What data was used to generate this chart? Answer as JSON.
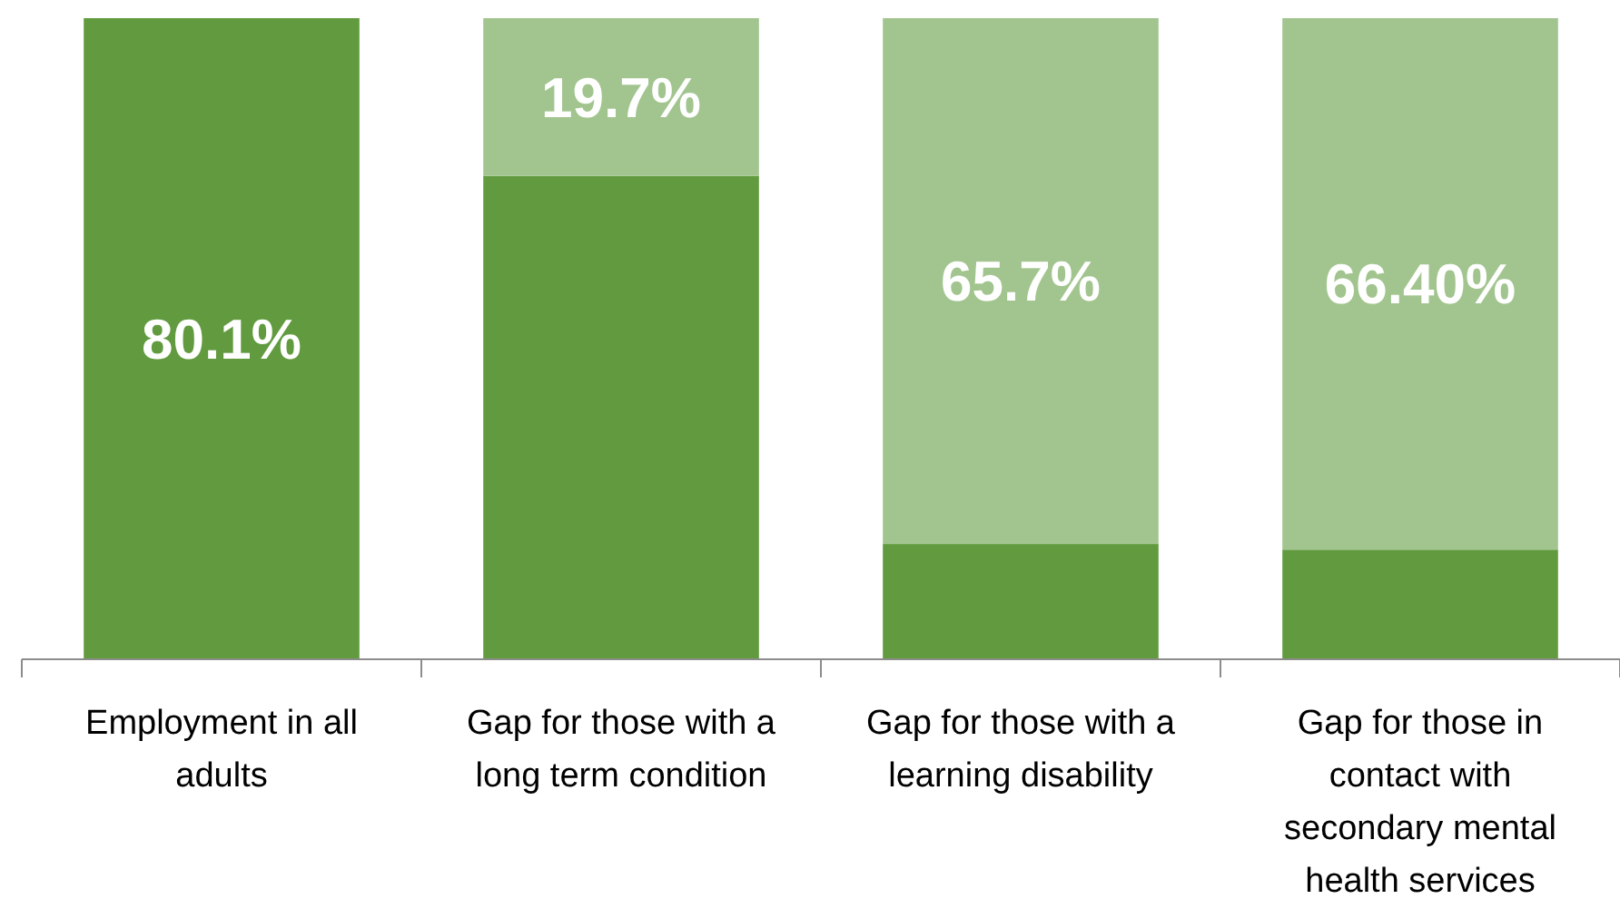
{
  "chart_data": {
    "type": "bar",
    "stacked": true,
    "categories": [
      "Employment in all adults",
      "Gap for those with a long term condition",
      "Gap for those with a learning disability",
      "Gap for those in contact with secondary mental health services"
    ],
    "series": [
      {
        "color": "#629b3f",
        "values": [
          80.1,
          60.4,
          14.4,
          13.7
        ],
        "value_labels": [
          "80.1%",
          null,
          null,
          null
        ]
      },
      {
        "color": "#a2c58f",
        "values": [
          null,
          19.7,
          65.7,
          66.4
        ],
        "value_labels": [
          null,
          "19.7%",
          "65.7%",
          "66.40%"
        ]
      }
    ]
  }
}
